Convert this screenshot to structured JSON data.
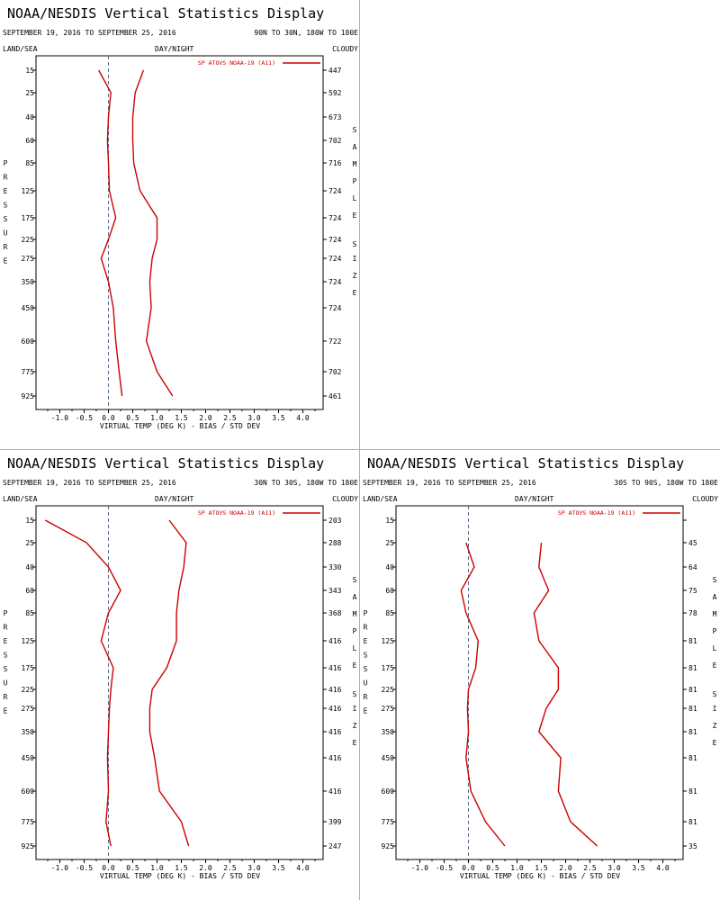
{
  "chart_data": [
    {
      "type": "line",
      "title": "NOAA/NESDIS Vertical Statistics Display",
      "date_range": "SEPTEMBER 19, 2016 TO SEPTEMBER 25, 2016",
      "region": "90N TO 30N, 180W TO 180E",
      "corner_labels": {
        "left": "LAND/SEA",
        "middle": "DAY/NIGHT",
        "right": "CLOUDY"
      },
      "legend": "SP ATOVS NOAA-19 (A11)",
      "xlabel": "VIRTUAL TEMP (DEG K) - BIAS / STD DEV",
      "ylabel": "PRESSURE",
      "y2label": "SAMPLE SIZE",
      "xlim": [
        -1.5,
        4.5
      ],
      "x_ticks": [
        "-1.0",
        "-0.5",
        "0.0",
        "0.5",
        "1.0",
        "1.5",
        "2.0",
        "2.5",
        "3.0",
        "3.5",
        "4.0"
      ],
      "y_ticks": [
        "15",
        "25",
        "40",
        "60",
        "85",
        "125",
        "175",
        "225",
        "275",
        "350",
        "450",
        "600",
        "775",
        "925"
      ],
      "sample_sizes": [
        "447",
        "592",
        "673",
        "702",
        "716",
        "724",
        "724",
        "724",
        "724",
        "724",
        "724",
        "722",
        "702",
        "461"
      ],
      "series": [
        {
          "values": [
            -0.2,
            0.05,
            0.0,
            -0.02,
            0.0,
            0.02,
            0.15,
            0.0,
            -0.15,
            0.0,
            0.1,
            0.15,
            0.22,
            0.28
          ]
        },
        {
          "values": [
            0.72,
            0.55,
            0.5,
            0.5,
            0.52,
            0.65,
            1.0,
            1.0,
            0.9,
            0.85,
            0.88,
            0.78,
            1.0,
            1.32
          ]
        }
      ]
    },
    {
      "type": "line",
      "title": "NOAA/NESDIS Vertical Statistics Display",
      "date_range": "SEPTEMBER 19, 2016 TO SEPTEMBER 25, 2016",
      "region": "30N TO 30S, 180W TO 180E",
      "corner_labels": {
        "left": "LAND/SEA",
        "middle": "DAY/NIGHT",
        "right": "CLOUDY"
      },
      "legend": "SP ATOVS NOAA-19 (A11)",
      "xlabel": "VIRTUAL TEMP (DEG K) - BIAS / STD DEV",
      "ylabel": "PRESSURE",
      "y2label": "SAMPLE SIZE",
      "xlim": [
        -1.5,
        4.5
      ],
      "x_ticks": [
        "-1.0",
        "-0.5",
        "0.0",
        "0.5",
        "1.0",
        "1.5",
        "2.0",
        "2.5",
        "3.0",
        "3.5",
        "4.0"
      ],
      "y_ticks": [
        "15",
        "25",
        "40",
        "60",
        "85",
        "125",
        "175",
        "225",
        "275",
        "350",
        "450",
        "600",
        "775",
        "925"
      ],
      "sample_sizes": [
        "203",
        "288",
        "330",
        "343",
        "368",
        "416",
        "416",
        "416",
        "416",
        "416",
        "416",
        "416",
        "399",
        "247"
      ],
      "series": [
        {
          "values": [
            -1.3,
            -0.45,
            0.0,
            0.25,
            0.0,
            -0.15,
            0.1,
            0.05,
            0.02,
            0.0,
            -0.02,
            0.0,
            -0.05,
            0.05
          ]
        },
        {
          "values": [
            1.25,
            1.6,
            1.55,
            1.45,
            1.4,
            1.4,
            1.2,
            0.9,
            0.85,
            0.85,
            0.95,
            1.05,
            1.5,
            1.65
          ]
        }
      ]
    },
    {
      "type": "line",
      "title": "NOAA/NESDIS Vertical Statistics Display",
      "date_range": "SEPTEMBER 19, 2016 TO SEPTEMBER 25, 2016",
      "region": "30S TO 90S, 180W TO 180E",
      "corner_labels": {
        "left": "LAND/SEA",
        "middle": "DAY/NIGHT",
        "right": "CLOUDY"
      },
      "legend": "SP ATOVS NOAA-19 (A11)",
      "xlabel": "VIRTUAL TEMP (DEG K) - BIAS / STD DEV",
      "ylabel": "PRESSURE",
      "y2label": "SAMPLE SIZE",
      "xlim": [
        -1.5,
        4.5
      ],
      "x_ticks": [
        "-1.0",
        "-0.5",
        "0.0",
        "0.5",
        "1.0",
        "1.5",
        "2.0",
        "2.5",
        "3.0",
        "3.5",
        "4.0"
      ],
      "y_ticks": [
        "15",
        "25",
        "40",
        "60",
        "85",
        "125",
        "175",
        "225",
        "275",
        "350",
        "450",
        "600",
        "775",
        "925"
      ],
      "sample_sizes": [
        "",
        "45",
        "64",
        "75",
        "78",
        "81",
        "81",
        "81",
        "81",
        "81",
        "81",
        "81",
        "81",
        "35"
      ],
      "series": [
        {
          "values": [
            null,
            -0.05,
            0.12,
            -0.15,
            -0.05,
            0.2,
            0.15,
            0.0,
            -0.02,
            0.0,
            -0.05,
            0.05,
            0.35,
            0.75
          ]
        },
        {
          "values": [
            null,
            1.5,
            1.45,
            1.65,
            1.35,
            1.45,
            1.85,
            1.85,
            1.6,
            1.45,
            1.9,
            1.85,
            2.1,
            2.65
          ]
        }
      ]
    }
  ]
}
